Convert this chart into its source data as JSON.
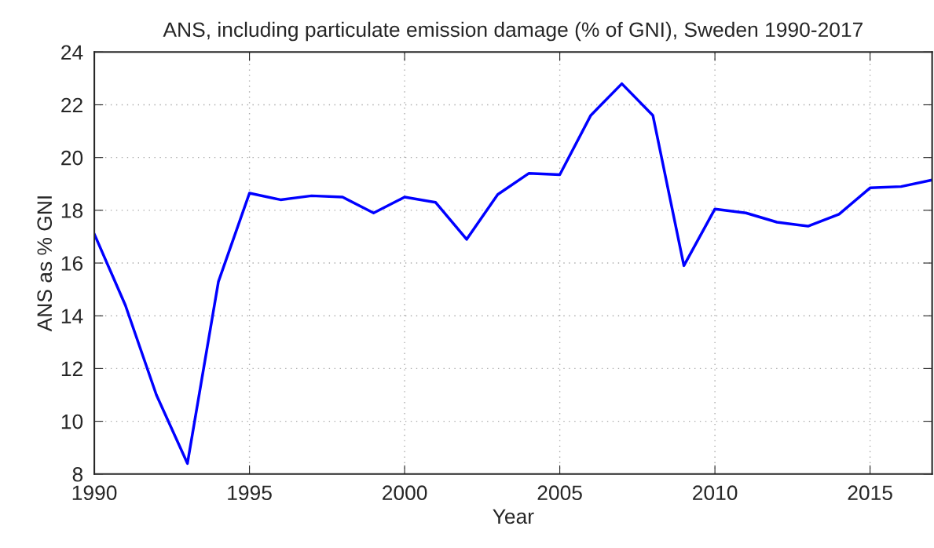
{
  "chart_data": {
    "type": "line",
    "title": "ANS, including particulate emission damage (% of GNI), Sweden 1990-2017",
    "xlabel": "Year",
    "ylabel": "ANS as % GNI",
    "x": [
      1990,
      1991,
      1992,
      1993,
      1994,
      1995,
      1996,
      1997,
      1998,
      1999,
      2000,
      2001,
      2002,
      2003,
      2004,
      2005,
      2006,
      2007,
      2008,
      2009,
      2010,
      2011,
      2012,
      2013,
      2014,
      2015,
      2016,
      2017
    ],
    "series": [
      {
        "color": "#0000ff",
        "values": [
          17.1,
          14.4,
          11.0,
          8.4,
          15.3,
          18.65,
          18.4,
          18.55,
          18.5,
          17.9,
          18.5,
          18.3,
          16.9,
          18.6,
          19.4,
          19.35,
          21.6,
          22.8,
          21.6,
          15.9,
          18.05,
          17.9,
          17.55,
          17.4,
          17.85,
          18.85,
          18.9,
          19.15
        ]
      }
    ],
    "xlim": [
      1990,
      2017
    ],
    "xticks": [
      1990,
      1995,
      2000,
      2005,
      2010,
      2015
    ],
    "ylim": [
      8,
      24
    ],
    "yticks": [
      8,
      10,
      12,
      14,
      16,
      18,
      20,
      22,
      24
    ],
    "grid": true,
    "marker": "none",
    "line_style": "solid"
  }
}
